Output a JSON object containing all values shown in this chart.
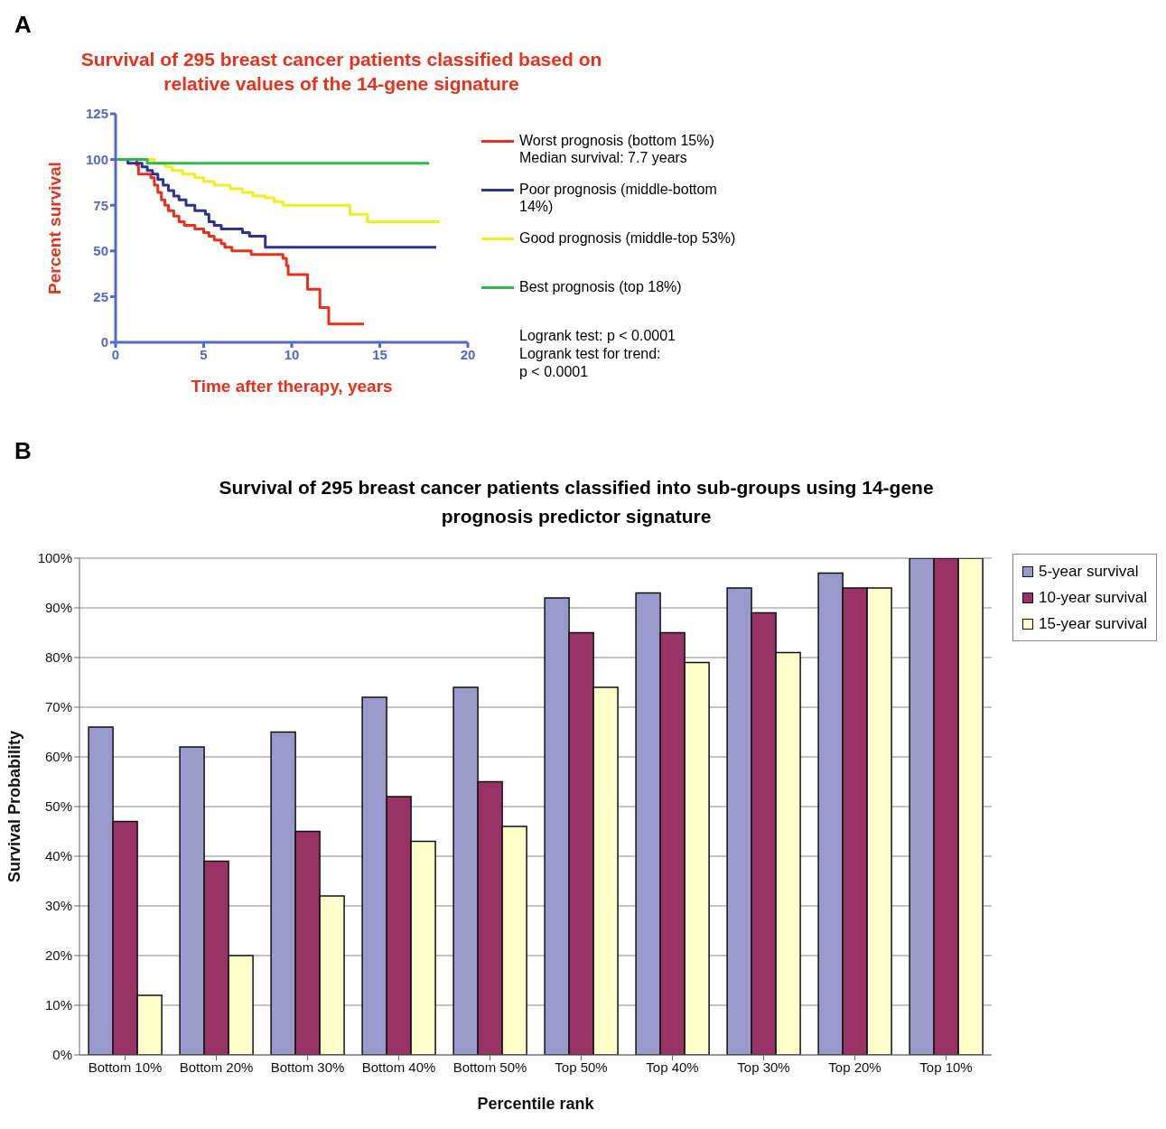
{
  "chart_data": [
    {
      "type": "step",
      "title": "Survival of 295 breast cancer patients classified based on relative values of the 14-gene signature",
      "xlabel": "Time after therapy, years",
      "ylabel": "Percent survival",
      "xlim": [
        0,
        20
      ],
      "xticks": [
        0,
        5,
        10,
        15,
        20
      ],
      "ylim": [
        0,
        125
      ],
      "yticks": [
        0,
        25,
        50,
        75,
        100,
        125
      ],
      "legend": "right",
      "annotations": [
        "A",
        "Logrank test: p < 0.0001\nLogrank test for trend:\np < 0.0001"
      ],
      "series": [
        {
          "name": "Worst prognosis (bottom 15%)\nMedian survival: 7.7 years",
          "color": "#e8301c",
          "x": [
            0,
            1.2,
            1.3,
            2.0,
            2.2,
            2.4,
            2.6,
            2.8,
            3.0,
            3.3,
            3.6,
            3.9,
            4.5,
            5.0,
            5.3,
            5.6,
            6.0,
            6.2,
            6.6,
            7.7,
            9.5,
            9.7,
            9.8,
            10.9,
            11.6,
            12.1,
            14.1
          ],
          "values": [
            100,
            97,
            92,
            90,
            86,
            82,
            78,
            75,
            72,
            69,
            66,
            64,
            62,
            60,
            58,
            56,
            54,
            52,
            50,
            48,
            46,
            42,
            37,
            29,
            19,
            10,
            10
          ]
        },
        {
          "name": "Poor prognosis (middle-bottom 14%)",
          "color": "#2e3192",
          "x": [
            0,
            0.7,
            1.5,
            1.8,
            2.1,
            2.4,
            2.7,
            3.0,
            3.3,
            3.6,
            4.0,
            4.5,
            5.1,
            5.3,
            5.6,
            6.0,
            7.2,
            7.6,
            8.5,
            18.2
          ],
          "values": [
            100,
            98,
            96,
            94,
            92,
            89,
            86,
            83,
            80,
            78,
            75,
            72,
            70,
            66,
            64,
            62,
            60,
            58,
            52,
            52
          ]
        },
        {
          "name": "Good prognosis (middle-top 53%)",
          "color": "#eeee22",
          "x": [
            0,
            2.2,
            2.8,
            3.2,
            3.8,
            4.5,
            5.0,
            5.6,
            6.5,
            7.2,
            7.8,
            8.5,
            9.0,
            9.5,
            13.3,
            14.3,
            18.4
          ],
          "values": [
            100,
            98,
            96,
            94,
            92,
            90,
            88,
            86,
            84,
            82,
            80,
            79,
            77,
            75,
            70,
            66,
            66
          ]
        },
        {
          "name": "Best prognosis (top 18%)",
          "color": "#2db84b",
          "x": [
            0,
            1.8,
            17.8
          ],
          "values": [
            100,
            98,
            98
          ]
        }
      ]
    },
    {
      "type": "bar",
      "title": "Survival of 295 breast cancer patients classified into sub-groups using 14-gene prognosis predictor signature",
      "xlabel": "Percentile rank",
      "ylabel": "Survival Probability",
      "annotations": [
        "B"
      ],
      "grid": "y",
      "legend": "top right",
      "categories": [
        "Bottom 10%",
        "Bottom 20%",
        "Bottom 30%",
        "Bottom 40%",
        "Bottom 50%",
        "Top 50%",
        "Top 40%",
        "Top 30%",
        "Top 20%",
        "Top 10%"
      ],
      "ylim": [
        0,
        100
      ],
      "yticks": [
        {
          "value": 0,
          "label": "0%"
        },
        {
          "value": 10,
          "label": "10%"
        },
        {
          "value": 20,
          "label": "20%"
        },
        {
          "value": 30,
          "label": "30%"
        },
        {
          "value": 40,
          "label": "40%"
        },
        {
          "value": 50,
          "label": "50%"
        },
        {
          "value": 60,
          "label": "60%"
        },
        {
          "value": 70,
          "label": "70%"
        },
        {
          "value": 80,
          "label": "80%"
        },
        {
          "value": 90,
          "label": "90%"
        },
        {
          "value": 100,
          "label": "100%"
        }
      ],
      "series": [
        {
          "name": "5-year survival",
          "color": "#9999cc",
          "values": [
            66,
            62,
            65,
            72,
            74,
            92,
            93,
            94,
            97,
            100
          ]
        },
        {
          "name": "10-year survival",
          "color": "#993366",
          "values": [
            47,
            39,
            45,
            52,
            55,
            85,
            85,
            89,
            94,
            100
          ]
        },
        {
          "name": "15-year survival",
          "color": "#ffffcc",
          "values": [
            12,
            20,
            32,
            43,
            46,
            74,
            79,
            81,
            94,
            100
          ]
        }
      ]
    }
  ]
}
